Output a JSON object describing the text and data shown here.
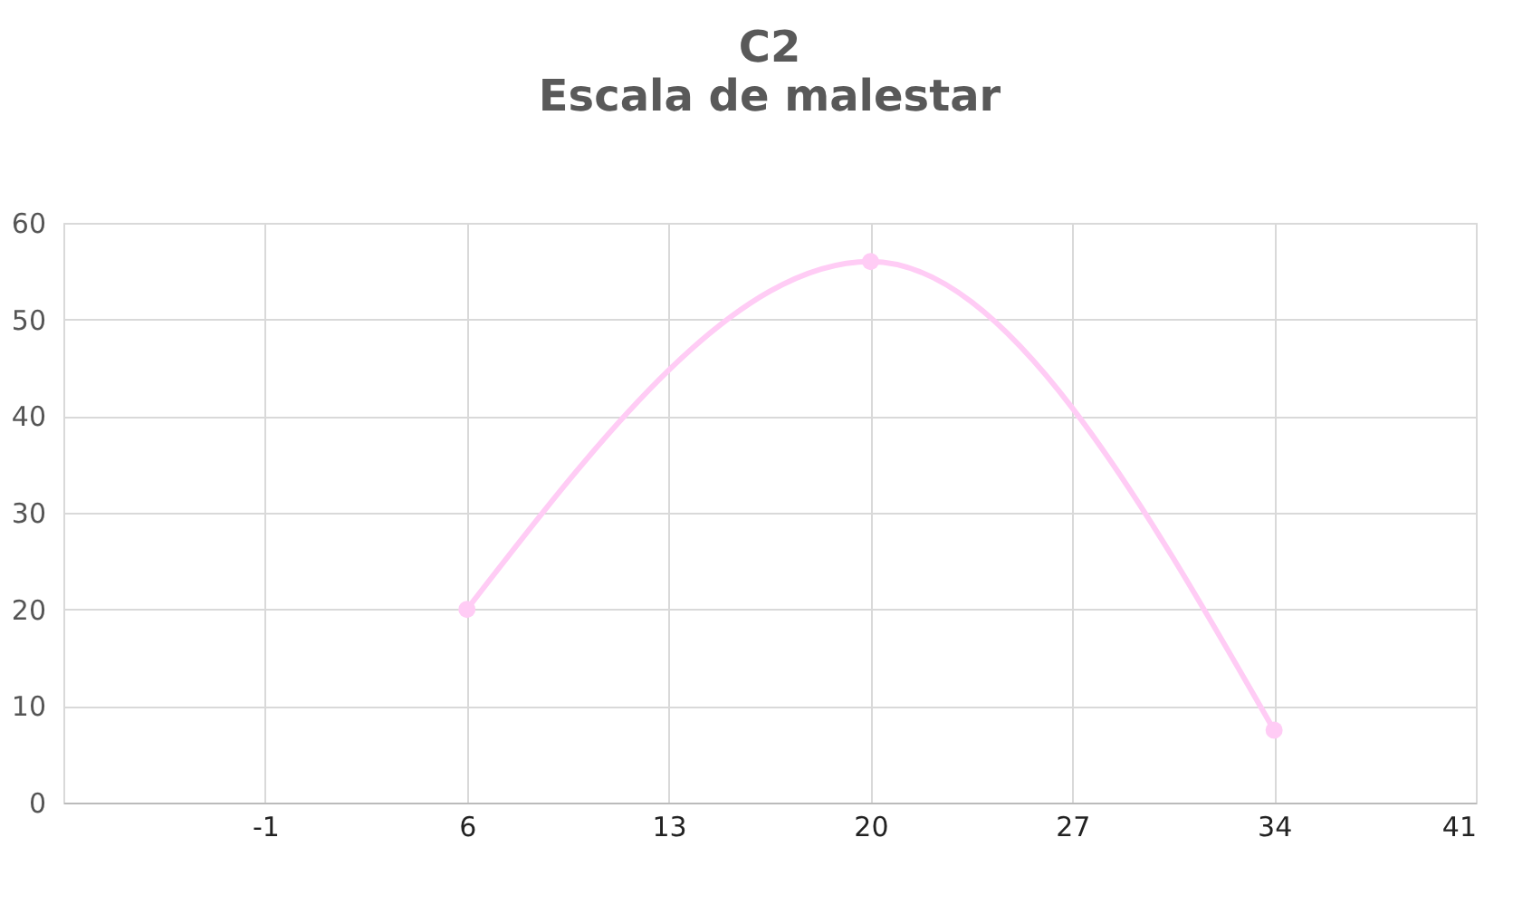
{
  "chart_data": {
    "type": "line",
    "title": "C2",
    "subtitle": "Escala de malestar",
    "x": [
      6,
      20,
      34
    ],
    "series": [
      {
        "color": "#ffccf5",
        "values": [
          20,
          56,
          7.5
        ]
      }
    ],
    "xlim": [
      -8,
      41
    ],
    "xticks": [
      {
        "value": -8,
        "label": null
      },
      -1,
      6,
      13,
      20,
      27,
      34,
      41
    ],
    "ylim": [
      0,
      60
    ],
    "yticks": [
      0,
      10,
      20,
      30,
      40,
      50,
      60
    ],
    "grid": true,
    "marker": "circle",
    "line_style": "solid"
  }
}
